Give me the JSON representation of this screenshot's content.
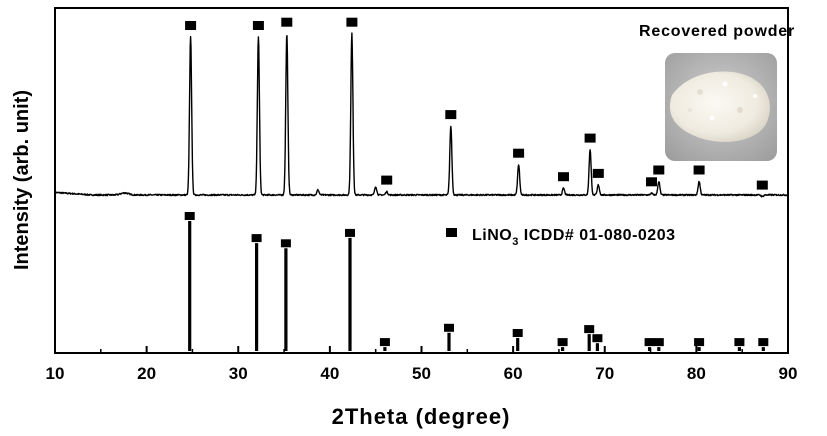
{
  "chart_data": {
    "type": "line",
    "xlabel": "2Theta (degree)",
    "ylabel": "Intensity (arb. unit)",
    "xlim": [
      10,
      90
    ],
    "x_ticks": [
      "10",
      "20",
      "30",
      "40",
      "50",
      "60",
      "70",
      "80",
      "90"
    ],
    "annotation": "Recovered powder",
    "legend": {
      "marker": "filled-square",
      "formula_main": "LiNO",
      "formula_sub": "3",
      "reference": " ICDD# 01-080-0203"
    },
    "series": [
      {
        "name": "Recovered powder",
        "baseline": 0.03,
        "peaks": [
          {
            "x": 24.8,
            "y": 0.97,
            "indexed": true
          },
          {
            "x": 32.2,
            "y": 0.97,
            "indexed": true
          },
          {
            "x": 35.3,
            "y": 0.99,
            "indexed": true
          },
          {
            "x": 38.7,
            "y": 0.06,
            "indexed": false
          },
          {
            "x": 42.4,
            "y": 0.99,
            "indexed": true
          },
          {
            "x": 45.0,
            "y": 0.08,
            "indexed": false
          },
          {
            "x": 46.2,
            "y": 0.05,
            "indexed": true
          },
          {
            "x": 53.2,
            "y": 0.44,
            "indexed": true
          },
          {
            "x": 60.6,
            "y": 0.21,
            "indexed": true
          },
          {
            "x": 65.5,
            "y": 0.07,
            "indexed": true
          },
          {
            "x": 68.4,
            "y": 0.3,
            "indexed": true
          },
          {
            "x": 69.3,
            "y": 0.09,
            "indexed": true
          },
          {
            "x": 75.1,
            "y": 0.04,
            "indexed": true
          },
          {
            "x": 75.9,
            "y": 0.11,
            "indexed": true
          },
          {
            "x": 80.3,
            "y": 0.11,
            "indexed": true
          },
          {
            "x": 87.2,
            "y": 0.02,
            "indexed": true
          }
        ]
      },
      {
        "name": "LiNO3 ICDD# 01-080-0203",
        "type": "stick",
        "peaks": [
          {
            "x": 24.7,
            "y": 1.0,
            "marker": true
          },
          {
            "x": 32.0,
            "y": 0.83,
            "marker": true
          },
          {
            "x": 35.2,
            "y": 0.79,
            "marker": true
          },
          {
            "x": 42.2,
            "y": 0.87,
            "marker": true
          },
          {
            "x": 46.0,
            "y": 0.03,
            "marker": true
          },
          {
            "x": 53.0,
            "y": 0.14,
            "marker": true
          },
          {
            "x": 60.5,
            "y": 0.1,
            "marker": true
          },
          {
            "x": 65.4,
            "y": 0.03,
            "marker": true
          },
          {
            "x": 68.3,
            "y": 0.13,
            "marker": true
          },
          {
            "x": 69.2,
            "y": 0.06,
            "marker": true
          },
          {
            "x": 74.9,
            "y": 0.03,
            "marker": true
          },
          {
            "x": 75.9,
            "y": 0.03,
            "marker": true
          },
          {
            "x": 80.3,
            "y": 0.03,
            "marker": true
          },
          {
            "x": 84.7,
            "y": 0.03,
            "marker": true
          },
          {
            "x": 87.3,
            "y": 0.03,
            "marker": true
          },
          {
            "x": 15.0,
            "y": 0.01,
            "marker": false
          },
          {
            "x": 20.0,
            "y": 0.02,
            "marker": false
          },
          {
            "x": 30.0,
            "y": 0.02,
            "marker": false
          },
          {
            "x": 40.0,
            "y": 0.02,
            "marker": false
          },
          {
            "x": 45.0,
            "y": 0.01,
            "marker": false
          },
          {
            "x": 50.0,
            "y": 0.01,
            "marker": false
          },
          {
            "x": 55.0,
            "y": 0.01,
            "marker": false
          },
          {
            "x": 70.0,
            "y": 0.01,
            "marker": false
          }
        ]
      }
    ],
    "inset": {
      "subject": "white powder photograph"
    },
    "colors": {
      "line": "#000000",
      "background": "#ffffff",
      "inset_bg": "#bcbcbc",
      "powder": "#f4f1e8"
    }
  }
}
